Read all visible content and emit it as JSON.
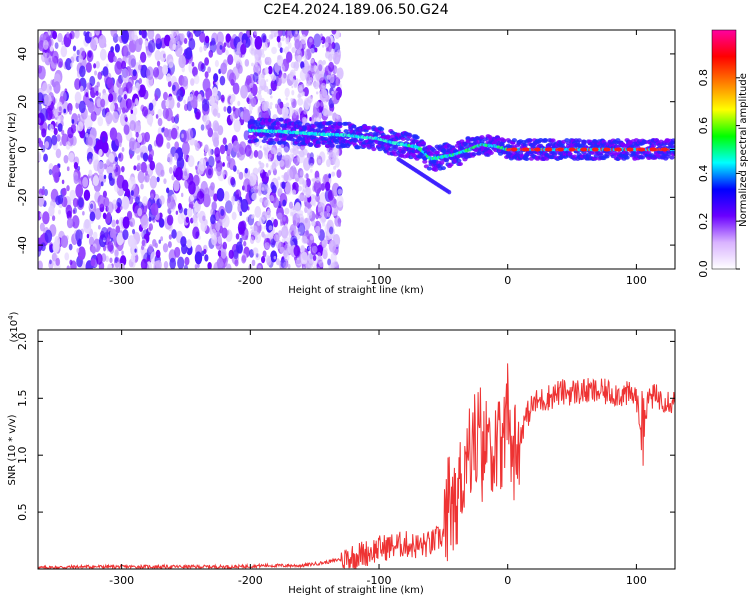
{
  "title": "C2E4.2024.189.06.50.G24",
  "chart_data": [
    {
      "type": "heatmap",
      "xlabel": "Height of straight line (km)",
      "ylabel": "Frequency (Hz)",
      "xlim": [
        -365,
        130
      ],
      "ylim": [
        -50,
        50
      ],
      "xticks": [
        -300,
        -200,
        -100,
        0,
        100
      ],
      "yticks": [
        -40,
        -20,
        0,
        20,
        40
      ],
      "colorbar": {
        "label": "Normalized spectral amplitude",
        "range": [
          0,
          1
        ],
        "ticks": [
          "0.0",
          "0.2",
          "0.4",
          "0.6",
          "0.8"
        ],
        "tick_values": [
          0,
          0.2,
          0.4,
          0.6,
          0.8
        ],
        "colors": [
          "#ffffff",
          "#d9b3ff",
          "#6a00ff",
          "#0000ff",
          "#00ffff",
          "#00ff00",
          "#ffff00",
          "#ff7f00",
          "#ff0000",
          "#ff00a0"
        ]
      },
      "signal_trace": {
        "x": [
          -200,
          -175,
          -150,
          -125,
          -100,
          -90,
          -80,
          -70,
          -65,
          -60,
          -50,
          -40,
          -30,
          -20,
          -10,
          0,
          20,
          50,
          80,
          110,
          130
        ],
        "y": [
          8,
          7.5,
          6.5,
          6,
          4.5,
          3,
          2,
          1,
          -1,
          -4,
          -3,
          -2,
          0,
          2,
          1.5,
          0,
          0,
          0,
          0,
          0,
          0
        ]
      }
    },
    {
      "type": "line",
      "xlabel": "Height of straight line (km)",
      "ylabel": "SNR (10 * v/v)",
      "multiplier_label": "(x10",
      "multiplier_exp": "4",
      "multiplier_close": ")",
      "xlim": [
        -365,
        130
      ],
      "ylim": [
        0,
        2.1
      ],
      "xticks": [
        -300,
        -200,
        -100,
        0,
        100
      ],
      "yticks": [
        "0.5",
        "1.0",
        "1.5",
        "2.0"
      ],
      "ytick_values": [
        0.5,
        1.0,
        1.5,
        2.0
      ],
      "color": "#ee3333",
      "series": [
        {
          "x": [
            -365,
            -330,
            -300,
            -270,
            -240,
            -210,
            -190,
            -160,
            -140,
            -125,
            -110,
            -100,
            -90,
            -80,
            -70,
            -60,
            -50,
            -45,
            -40,
            -35,
            -30,
            -25,
            -20,
            -15,
            -10,
            -5,
            0,
            5,
            10,
            15,
            20,
            30,
            40,
            60,
            80,
            100,
            104,
            110,
            120,
            130
          ],
          "y": [
            0.01,
            0.02,
            0.02,
            0.02,
            0.02,
            0.02,
            0.03,
            0.03,
            0.06,
            0.1,
            0.14,
            0.18,
            0.2,
            0.22,
            0.2,
            0.22,
            0.3,
            0.45,
            0.6,
            0.85,
            1.05,
            1.15,
            0.95,
            1.25,
            1.0,
            1.05,
            1.25,
            1.05,
            1.2,
            1.35,
            1.45,
            1.5,
            1.55,
            1.56,
            1.55,
            1.52,
            1.15,
            1.52,
            1.5,
            1.47
          ]
        }
      ]
    }
  ]
}
